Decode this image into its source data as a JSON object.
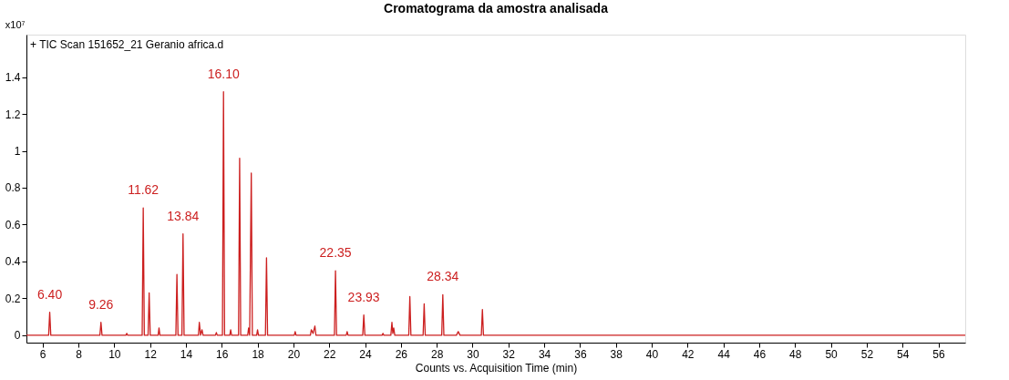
{
  "chart_data": {
    "type": "line",
    "title": "Cromatograma da amostra analisada",
    "xlabel": "Counts vs. Acquisition Time (min)",
    "ylabel": "x10⁷",
    "x": [
      5.1,
      6.34,
      6.4,
      6.46,
      9.2,
      9.26,
      9.32,
      10.65,
      10.7,
      10.75,
      11.56,
      11.62,
      11.68,
      11.89,
      11.95,
      12.01,
      12.45,
      12.5,
      12.55,
      13.44,
      13.5,
      13.56,
      13.78,
      13.84,
      13.9,
      14.7,
      14.75,
      14.82,
      14.9,
      14.96,
      15.65,
      15.7,
      15.75,
      16.04,
      16.1,
      16.16,
      16.45,
      16.5,
      16.55,
      16.94,
      17.0,
      17.06,
      17.45,
      17.5,
      17.56,
      17.65,
      17.71,
      17.95,
      18.0,
      18.05,
      18.44,
      18.5,
      18.56,
      20.05,
      20.1,
      20.15,
      20.95,
      21.0,
      21.1,
      21.2,
      21.26,
      22.29,
      22.35,
      22.41,
      22.95,
      23.0,
      23.05,
      23.87,
      23.93,
      23.99,
      24.95,
      25.0,
      25.05,
      25.44,
      25.5,
      25.55,
      25.6,
      25.66,
      26.44,
      26.5,
      26.56,
      27.24,
      27.3,
      27.36,
      28.28,
      28.34,
      28.4,
      29.1,
      29.2,
      29.3,
      30.49,
      30.55,
      30.61,
      57.5
    ],
    "series": [
      {
        "color": "#cc1f1f",
        "values": [
          0,
          0,
          0.125,
          0,
          0,
          0.07,
          0,
          0,
          0.01,
          0,
          0,
          0.69,
          0,
          0,
          0.23,
          0,
          0,
          0.04,
          0,
          0,
          0.33,
          0,
          0,
          0.55,
          0,
          0,
          0.07,
          0,
          0.03,
          0,
          0,
          0.015,
          0,
          0,
          1.32,
          0,
          0,
          0.03,
          0,
          0,
          0.96,
          0,
          0,
          0.04,
          0,
          0.88,
          0,
          0,
          0.03,
          0,
          0,
          0.42,
          0,
          0,
          0.02,
          0,
          0,
          0.03,
          0.01,
          0.05,
          0,
          0,
          0.35,
          0,
          0,
          0.02,
          0,
          0,
          0.11,
          0,
          0,
          0.01,
          0,
          0,
          0.07,
          0.01,
          0.04,
          0,
          0,
          0.21,
          0,
          0,
          0.17,
          0,
          0,
          0.22,
          0,
          0,
          0.02,
          0,
          0,
          0.14,
          0,
          0
        ]
      }
    ],
    "xlim": [
      5.1,
      57.5
    ],
    "xticks": [
      6,
      8,
      10,
      12,
      14,
      16,
      18,
      20,
      22,
      24,
      26,
      28,
      30,
      32,
      34,
      36,
      38,
      40,
      42,
      44,
      46,
      48,
      50,
      52,
      54,
      56
    ],
    "ylim": [
      -0.04,
      1.63
    ],
    "yticks": [
      0,
      0.2,
      0.4,
      0.6,
      0.8,
      1,
      1.2,
      1.4
    ],
    "line_style": "solid",
    "grid": false,
    "annotations": [
      "+ TIC Scan 151652_21 Geranio africa.d",
      {
        "text": "6.40",
        "x": 6.4,
        "y": 0.125
      },
      {
        "text": "9.26",
        "x": 9.26,
        "y": 0.07
      },
      {
        "text": "11.62",
        "x": 11.62,
        "y": 0.69
      },
      {
        "text": "13.84",
        "x": 13.84,
        "y": 0.55
      },
      {
        "text": "16.10",
        "x": 16.1,
        "y": 1.32
      },
      {
        "text": "22.35",
        "x": 22.35,
        "y": 0.35
      },
      {
        "text": "23.93",
        "x": 23.93,
        "y": 0.11
      },
      {
        "text": "28.34",
        "x": 28.34,
        "y": 0.22
      }
    ]
  }
}
